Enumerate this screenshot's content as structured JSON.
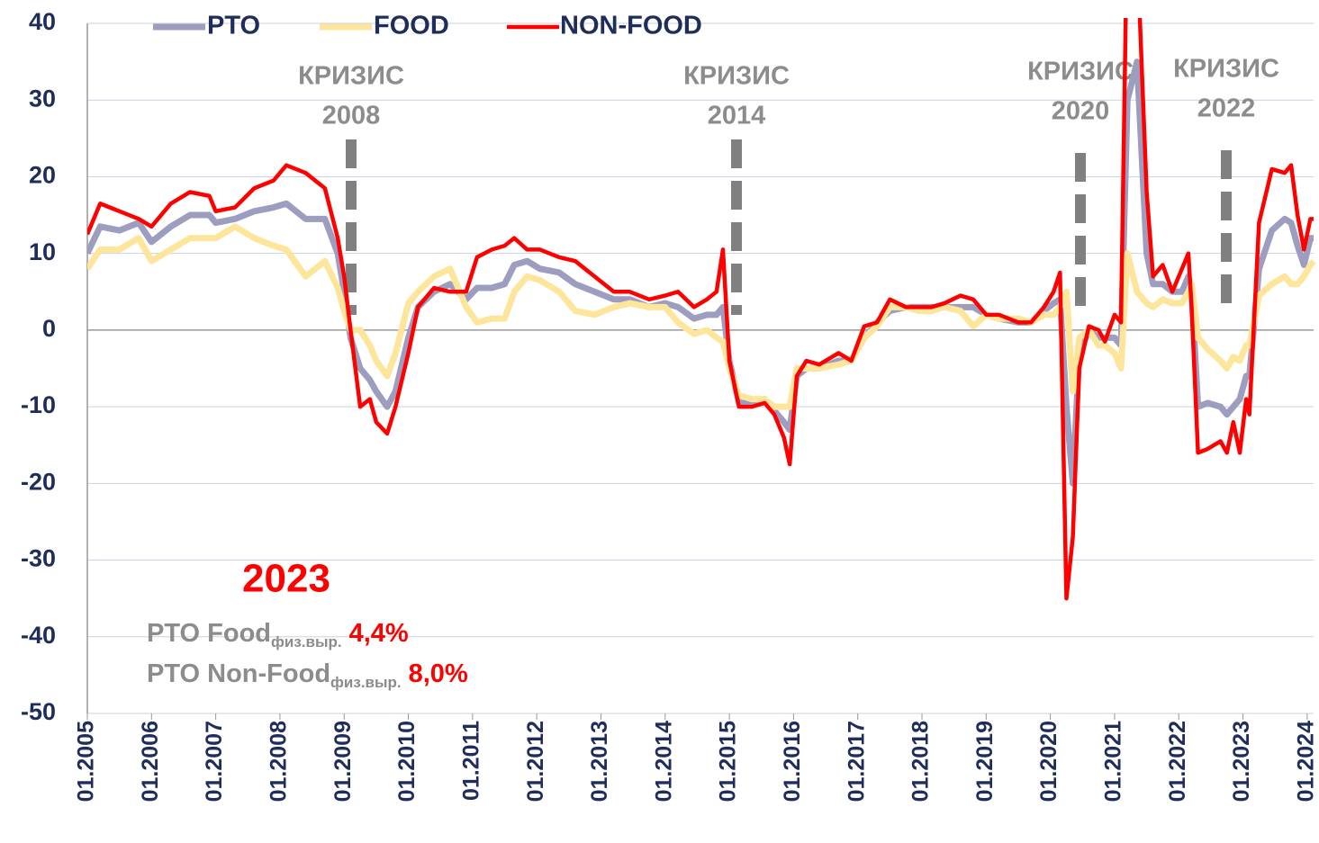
{
  "chart_data": {
    "type": "line",
    "x": [
      2005.0,
      2005.2,
      2005.5,
      2005.8,
      2006.0,
      2006.3,
      2006.6,
      2006.9,
      2007.0,
      2007.3,
      2007.6,
      2007.9,
      2008.1,
      2008.4,
      2008.7,
      2008.9,
      2009.0,
      2009.1,
      2009.25,
      2009.4,
      2009.5,
      2009.67,
      2009.8,
      2010.0,
      2010.15,
      2010.4,
      2010.65,
      2010.9,
      2011.07,
      2011.3,
      2011.5,
      2011.65,
      2011.85,
      2012.05,
      2012.35,
      2012.6,
      2012.9,
      2013.2,
      2013.45,
      2013.75,
      2014.0,
      2014.2,
      2014.45,
      2014.65,
      2014.8,
      2014.9,
      2015.0,
      2015.15,
      2015.35,
      2015.55,
      2015.7,
      2015.85,
      2015.94,
      2016.05,
      2016.2,
      2016.4,
      2016.7,
      2016.9,
      2017.1,
      2017.3,
      2017.5,
      2017.75,
      2017.95,
      2018.15,
      2018.35,
      2018.6,
      2018.8,
      2019.0,
      2019.2,
      2019.5,
      2019.7,
      2019.9,
      2020.05,
      2020.15,
      2020.25,
      2020.35,
      2020.45,
      2020.6,
      2020.75,
      2020.85,
      2021.0,
      2021.1,
      2021.2,
      2021.35,
      2021.5,
      2021.6,
      2021.75,
      2021.9,
      2022.05,
      2022.15,
      2022.2,
      2022.3,
      2022.45,
      2022.65,
      2022.75,
      2022.85,
      2022.95,
      2023.05,
      2023.1,
      2023.25,
      2023.45,
      2023.65,
      2023.75,
      2023.85,
      2023.95,
      2024.05,
      2024.1
    ],
    "series": [
      {
        "name": "PTO",
        "color": "#9d9dbf",
        "values": [
          10,
          13.5,
          13,
          14,
          11.5,
          13.5,
          15,
          15,
          14,
          14.5,
          15.5,
          16,
          16.5,
          14.5,
          14.5,
          10,
          5,
          -1,
          -5,
          -6.5,
          -8,
          -10,
          -8,
          -1,
          3,
          5,
          6,
          4,
          5.5,
          5.5,
          6,
          8.5,
          9,
          8,
          7.5,
          6,
          5,
          4,
          4,
          3,
          3.5,
          3,
          1.5,
          2,
          2,
          3,
          -4,
          -9.5,
          -9.5,
          -9,
          -10.5,
          -12,
          -13,
          -6,
          -5,
          -5,
          -4,
          -4,
          -1,
          1,
          2.5,
          3,
          3,
          3,
          3,
          3,
          3,
          2,
          1.5,
          1,
          1,
          2.5,
          3.5,
          4,
          -10,
          -20,
          -3,
          0,
          -1,
          -1,
          -1,
          -2,
          30,
          35,
          10,
          6,
          6,
          5,
          5,
          7,
          5,
          -10,
          -9.5,
          -10,
          -11,
          -10,
          -9,
          -6,
          -6,
          8,
          13,
          14.5,
          14,
          11,
          8.5,
          12,
          12
        ]
      },
      {
        "name": "FOOD",
        "color": "#fde69c",
        "values": [
          8,
          10.5,
          10.5,
          12,
          9,
          10.5,
          12,
          12,
          12,
          13.5,
          12,
          11,
          10.5,
          7,
          9,
          5.5,
          2.5,
          0,
          0,
          -2,
          -4,
          -6,
          -3,
          3.5,
          5,
          7,
          8,
          3,
          1,
          1.5,
          1.5,
          5,
          7,
          6.5,
          5,
          2.5,
          2,
          3,
          3.5,
          3,
          3,
          1,
          -0.5,
          0,
          -1,
          -1.5,
          -5,
          -8.5,
          -9,
          -9,
          -10,
          -10,
          -10,
          -5,
          -5,
          -5,
          -4.5,
          -4,
          -1,
          0.5,
          3,
          3,
          2.5,
          2.5,
          3,
          2.5,
          0.5,
          2,
          1.5,
          1.5,
          1,
          2,
          2,
          3,
          5,
          -8,
          -1,
          0,
          -2,
          -2,
          -3,
          -5,
          10,
          5,
          3.5,
          3,
          4,
          3.5,
          3.5,
          5,
          6,
          -1,
          -2.5,
          -4,
          -5,
          -3.5,
          -4,
          -2,
          -2,
          4.5,
          6,
          7,
          6,
          6,
          7,
          8.5,
          9
        ]
      },
      {
        "name": "NON-FOOD",
        "color": "#ff0000",
        "values": [
          12.5,
          16.5,
          15.5,
          14.5,
          13.5,
          16.5,
          18,
          17.5,
          15.5,
          16,
          18.5,
          19.5,
          21.5,
          20.5,
          18.5,
          12,
          7,
          0,
          -10,
          -9,
          -12,
          -13.5,
          -10,
          -3,
          3,
          5.5,
          5,
          5,
          9.5,
          10.5,
          11,
          12,
          10.5,
          10.5,
          9.5,
          9,
          7,
          5,
          5,
          4,
          4.5,
          5,
          3,
          4,
          5,
          10.5,
          -4,
          -10,
          -10,
          -9.5,
          -11,
          -14,
          -17.5,
          -6,
          -4,
          -4.5,
          -3,
          -4,
          0.5,
          1,
          4,
          3,
          3,
          3,
          3.5,
          4.5,
          4,
          2,
          2,
          1,
          1,
          3,
          5,
          7.5,
          -35,
          -27,
          -5,
          0.5,
          0,
          -1.5,
          2,
          1,
          55,
          50,
          18,
          7,
          8.5,
          5,
          8,
          10,
          3,
          -16,
          -15.5,
          -14.5,
          -16,
          -12,
          -16,
          -9,
          -11,
          14,
          21,
          20.5,
          21.5,
          15,
          10.5,
          14.5,
          14.5
        ]
      }
    ],
    "xlim": [
      2005,
      2024.1
    ],
    "xticks": [
      {
        "value": 2005,
        "label": "01.2005"
      },
      {
        "value": 2006,
        "label": "01.2006"
      },
      {
        "value": 2007,
        "label": "01.2007"
      },
      {
        "value": 2008,
        "label": "01.2008"
      },
      {
        "value": 2009,
        "label": "01.2009"
      },
      {
        "value": 2010,
        "label": "01.2010"
      },
      {
        "value": 2011,
        "label": "01.2011"
      },
      {
        "value": 2012,
        "label": "01.2012"
      },
      {
        "value": 2013,
        "label": "01.2013"
      },
      {
        "value": 2014,
        "label": "01.2014"
      },
      {
        "value": 2015,
        "label": "01.2015"
      },
      {
        "value": 2016,
        "label": "01.2016"
      },
      {
        "value": 2017,
        "label": "01.2017"
      },
      {
        "value": 2018,
        "label": "01.2018"
      },
      {
        "value": 2019,
        "label": "01.2019"
      },
      {
        "value": 2020,
        "label": "01.2020"
      },
      {
        "value": 2021,
        "label": "01.2021"
      },
      {
        "value": 2022,
        "label": "01.2022"
      },
      {
        "value": 2023,
        "label": "01.2023"
      },
      {
        "value": 2024,
        "label": "01.2024"
      }
    ],
    "ylim": [
      -50,
      40
    ],
    "yticks": [
      -50,
      -40,
      -30,
      -20,
      -10,
      0,
      10,
      20,
      30,
      40
    ],
    "grid": true,
    "legend": "top",
    "annotations": [
      {
        "label": "КРИЗИС",
        "year": "2008"
      },
      {
        "label": "КРИЗИС",
        "year": "2014"
      },
      {
        "label": "КРИЗИС",
        "year": "2020"
      },
      {
        "label": "КРИЗИС",
        "year": "2022"
      }
    ],
    "note": {
      "title": "2023",
      "rows": [
        {
          "label": "PTO Food",
          "sub": "физ.выр.",
          "value": "4,4%"
        },
        {
          "label": "PTO Non-Food",
          "sub": "физ.выр.",
          "value": "8,0%"
        }
      ]
    }
  }
}
